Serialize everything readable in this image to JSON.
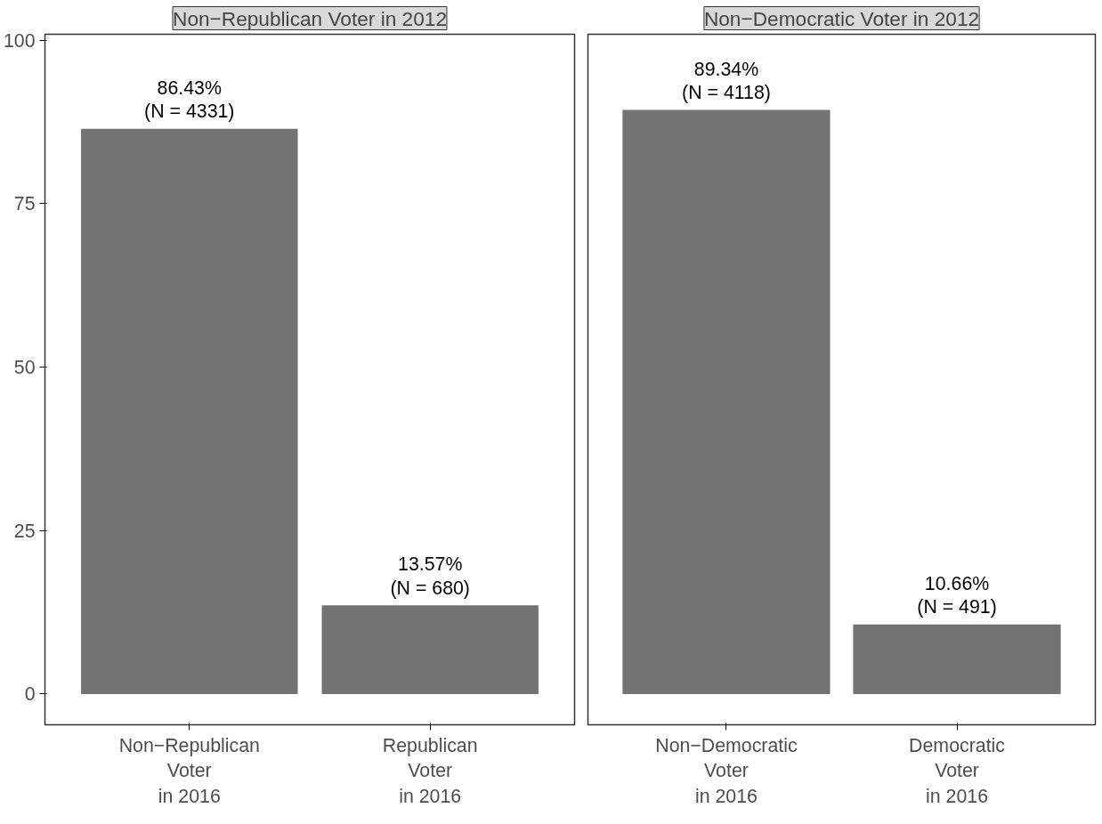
{
  "chart_data": [
    {
      "type": "bar",
      "title": "Non−Republican Voter in 2012",
      "categories": [
        "Non−Republican\nVoter\nin 2016",
        "Republican\nVoter\nin 2016"
      ],
      "values": [
        86.43,
        13.57
      ],
      "color": "#737373",
      "value_labels": [
        "86.43%\n(N = 4331)",
        "13.57%\n(N = 680)"
      ],
      "ylim": [
        -4.7,
        100.9
      ],
      "yticks": [
        0,
        25,
        50,
        75,
        100
      ],
      "grid": false
    },
    {
      "type": "bar",
      "title": "Non−Democratic Voter in 2012",
      "categories": [
        "Non−Democratic\nVoter\nin 2016",
        "Democratic\nVoter\nin 2016"
      ],
      "values": [
        89.34,
        10.66
      ],
      "color": "#737373",
      "value_labels": [
        "89.34%\n(N = 4118)",
        "10.66%\n(N = 491)"
      ],
      "ylim": [
        -4.7,
        100.9
      ],
      "yticks": [
        0,
        25,
        50,
        75,
        100
      ],
      "grid": false,
      "tick_labels": "x"
    }
  ]
}
